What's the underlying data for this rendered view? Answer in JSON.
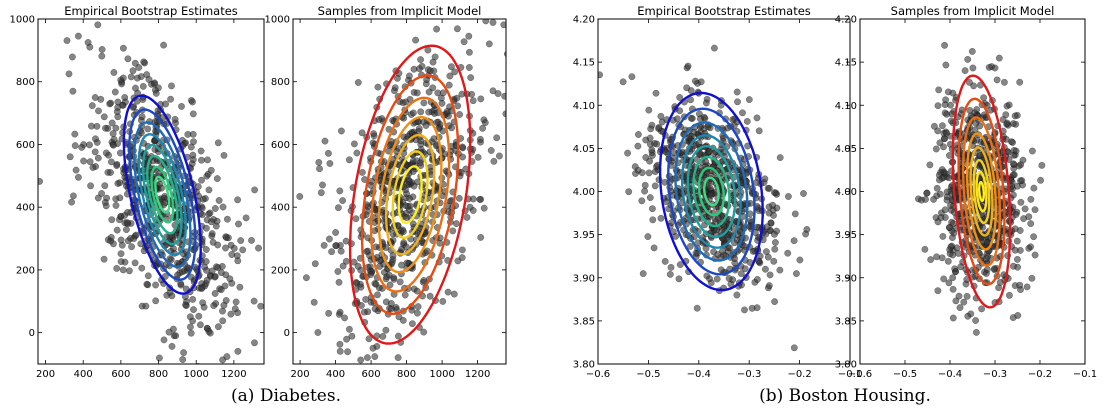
{
  "captions": {
    "left": "(a)  Diabetes.",
    "right": "(b)  Boston Housing."
  },
  "colors": {
    "points": "#333333",
    "axes": "#000000",
    "frame_fill": "#ffffff"
  },
  "chart_data": [
    {
      "type": "scatter",
      "title": "Empirical Bootstrap Estimates",
      "xlabel": "",
      "ylabel": "",
      "xlim": [
        160,
        1360
      ],
      "ylim": [
        -100,
        1000
      ],
      "xticks": [
        200,
        400,
        600,
        800,
        1000,
        1200
      ],
      "yticks": [
        0,
        200,
        400,
        600,
        800,
        1000
      ],
      "ytick_labels_shown": true,
      "points": {
        "count": 700,
        "mean": [
          820,
          430
        ],
        "std": [
          200,
          210
        ],
        "correlation": -0.55,
        "color": "#333333"
      },
      "contours": {
        "center": [
          820,
          440
        ],
        "semi_axes": [
          340,
          160
        ],
        "rotation_deg": 115,
        "levels": [
          1.0,
          0.86,
          0.73,
          0.61,
          0.5,
          0.39,
          0.28,
          0.18
        ],
        "colors": [
          "#1010d0",
          "#1a48c6",
          "#1e6bbc",
          "#1e86b0",
          "#1e9ea0",
          "#1fb48c",
          "#27c97a",
          "#3ddc84"
        ]
      }
    },
    {
      "type": "scatter",
      "title": "Samples from Implicit Model",
      "xlabel": "",
      "ylabel": "",
      "xlim": [
        160,
        1360
      ],
      "ylim": [
        -100,
        1000
      ],
      "xticks": [
        200,
        400,
        600,
        800,
        1000,
        1200
      ],
      "yticks": [
        0,
        200,
        400,
        600,
        800,
        1000
      ],
      "ytick_labels_shown": true,
      "points": {
        "count": 700,
        "mean": [
          820,
          440
        ],
        "std": [
          220,
          230
        ],
        "correlation": 0.45,
        "color": "#333333"
      },
      "contours": {
        "center": [
          820,
          440
        ],
        "semi_axes": [
          500,
          300
        ],
        "rotation_deg": 67,
        "levels": [
          1.0,
          0.8,
          0.65,
          0.52,
          0.4,
          0.29,
          0.19
        ],
        "colors": [
          "#e01818",
          "#e84a10",
          "#ec6e12",
          "#f08f14",
          "#f2ad18",
          "#f4ce1c",
          "#ffec1a"
        ]
      }
    },
    {
      "type": "scatter",
      "title": "Empirical Bootstrap Estimates",
      "xlabel": "",
      "ylabel": "",
      "xlim": [
        -0.6,
        -0.1
      ],
      "ylim": [
        3.8,
        4.2
      ],
      "xticks": [
        -0.6,
        -0.5,
        -0.4,
        -0.3,
        -0.2,
        -0.1
      ],
      "xtick_labels": [
        "−0.6",
        "−0.5",
        "−0.4",
        "−0.3",
        "−0.2",
        "−0.1"
      ],
      "yticks": [
        3.8,
        3.85,
        3.9,
        3.95,
        4.0,
        4.05,
        4.1,
        4.15,
        4.2
      ],
      "ytick_labels": [
        "3.80",
        "3.85",
        "3.90",
        "3.95",
        "4.00",
        "4.05",
        "4.10",
        "4.15",
        "4.20"
      ],
      "ytick_labels_shown": true,
      "points": {
        "count": 700,
        "mean": [
          -0.375,
          4.0
        ],
        "std": [
          0.065,
          0.055
        ],
        "correlation": -0.35,
        "color": "#333333"
      },
      "contours": {
        "center": [
          -0.375,
          4.0
        ],
        "semi_axes": [
          0.12,
          0.095
        ],
        "rotation_deg": 120,
        "levels": [
          1.0,
          0.84,
          0.7,
          0.57,
          0.46,
          0.35,
          0.24,
          0.14
        ],
        "colors": [
          "#1010d0",
          "#1a48c6",
          "#1e6bbc",
          "#1e86b0",
          "#1e9ea0",
          "#1fb48c",
          "#27c97a",
          "#3ddc84"
        ]
      }
    },
    {
      "type": "scatter",
      "title": "Samples from Implicit Model",
      "xlabel": "",
      "ylabel": "",
      "xlim": [
        -0.6,
        -0.1
      ],
      "ylim": [
        3.8,
        4.2
      ],
      "xticks": [
        -0.6,
        -0.5,
        -0.4,
        -0.3,
        -0.2,
        -0.1
      ],
      "xtick_labels": [
        "−0.6",
        "−0.5",
        "−0.4",
        "−0.3",
        "−0.2",
        "−0.1"
      ],
      "yticks": [
        3.8,
        3.85,
        3.9,
        3.95,
        4.0,
        4.05,
        4.1,
        4.15,
        4.2
      ],
      "ytick_labels": [
        "3.80",
        "3.85",
        "3.90",
        "3.95",
        "4.00",
        "4.05",
        "4.10",
        "4.15",
        "4.20"
      ],
      "ytick_labels_shown": true,
      "points": {
        "count": 700,
        "mean": [
          -0.33,
          4.0
        ],
        "std": [
          0.048,
          0.06
        ],
        "correlation": -0.15,
        "color": "#333333"
      },
      "contours": {
        "center": [
          -0.33,
          4.0
        ],
        "semi_axes": [
          0.136,
          0.06
        ],
        "rotation_deg": 100,
        "levels": [
          1.0,
          0.8,
          0.64,
          0.5,
          0.38,
          0.27,
          0.17,
          0.08
        ],
        "colors": [
          "#e01818",
          "#e84a10",
          "#ec6e12",
          "#f08f14",
          "#f2ad18",
          "#f4ce1c",
          "#ffe31a",
          "#ffef1a"
        ]
      }
    }
  ]
}
